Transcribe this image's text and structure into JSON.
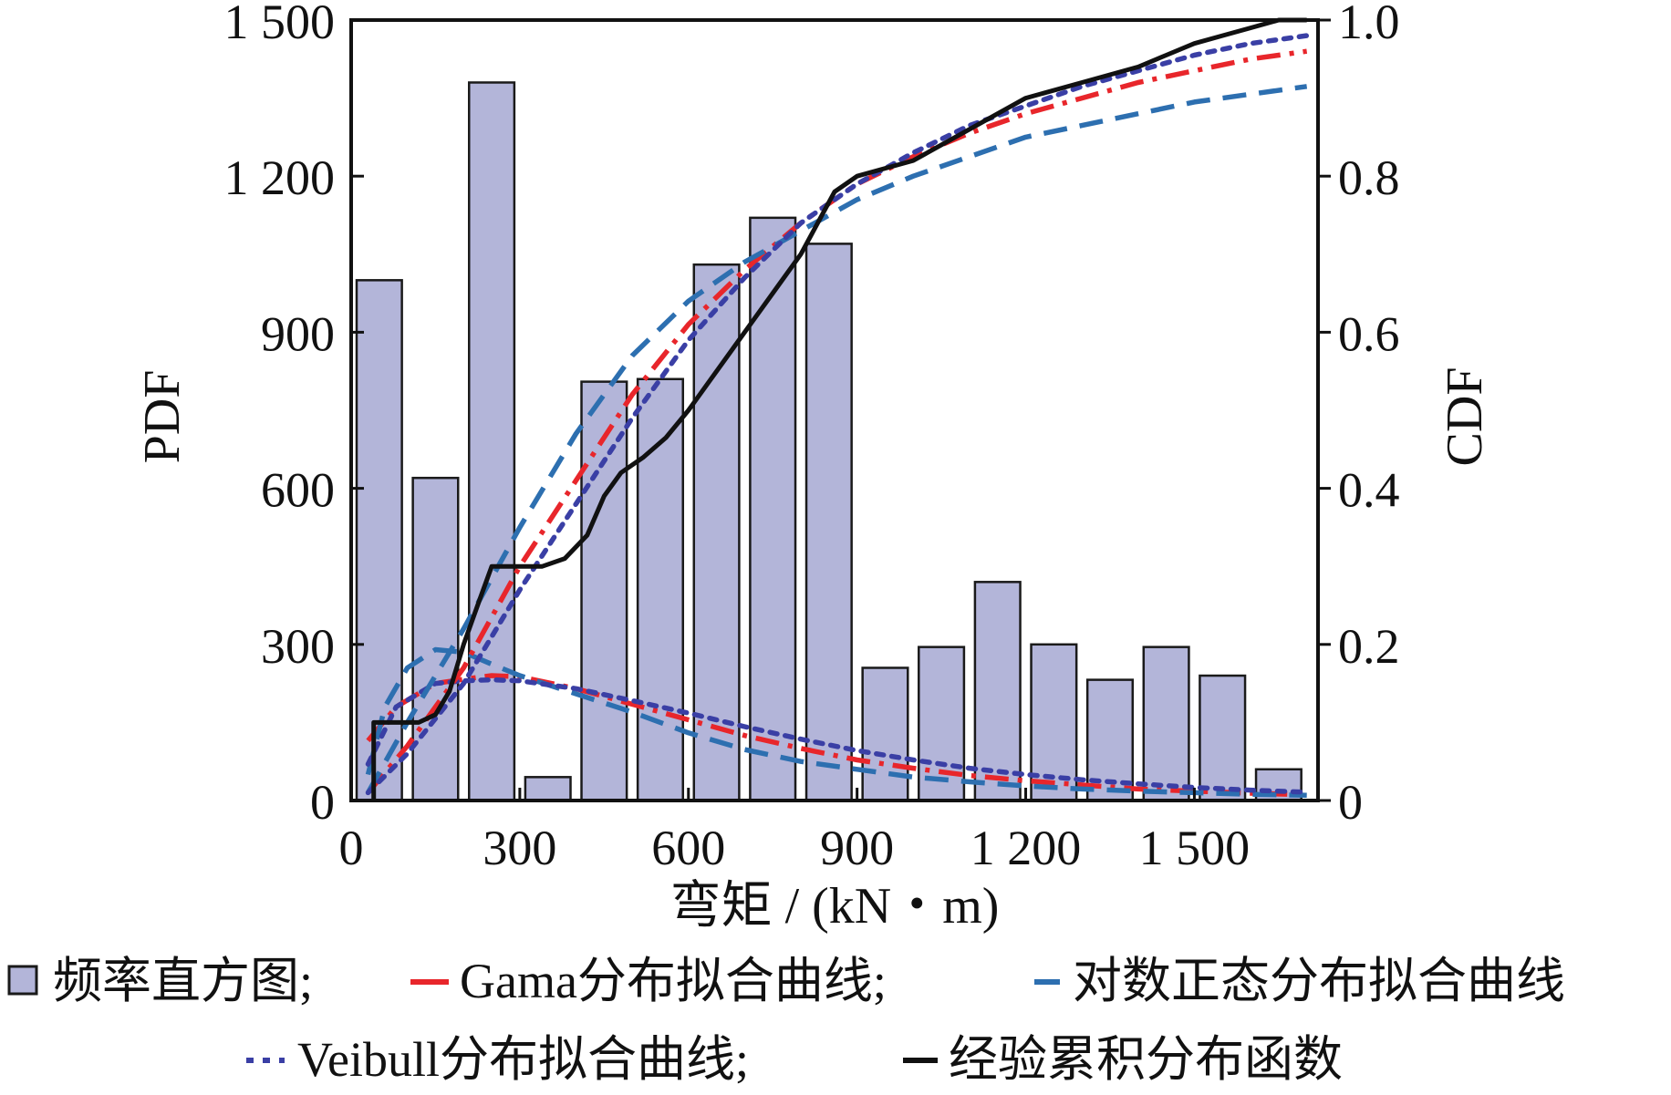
{
  "chart_data": {
    "type": "bar",
    "xlabel": "弯矩 / (kN・m)",
    "ylabel_left": "PDF",
    "ylabel_right": "CDF",
    "xlim": [
      0,
      1720
    ],
    "ylim_left": [
      0,
      1500
    ],
    "ylim_right": [
      0,
      1.0
    ],
    "x_ticks": [
      0,
      300,
      600,
      900,
      1200,
      1500
    ],
    "x_tick_labels": [
      "0",
      "300",
      "600",
      "900",
      "1 200",
      "1 500"
    ],
    "y_left_ticks": [
      0,
      300,
      600,
      900,
      1200,
      1500
    ],
    "y_left_tick_labels": [
      "0",
      "300",
      "600",
      "900",
      "1 200",
      "1 500"
    ],
    "y_right_ticks": [
      0,
      0.2,
      0.4,
      0.6,
      0.8,
      1.0
    ],
    "y_right_tick_labels": [
      "0",
      "0.2",
      "0.4",
      "0.6",
      "0.8",
      "1.0"
    ],
    "grid": false,
    "legend_position": "bottom",
    "colors": {
      "bar_fill": "#b3b5d9",
      "bar_stroke": "#1a1a1a",
      "gama": "#e8262b",
      "lognormal": "#2d6fb0",
      "weibull": "#3a3fa5",
      "ecdf": "#111111"
    },
    "histogram": {
      "name": "频率直方图",
      "bin_width": 100,
      "bin_start": [
        0,
        100,
        200,
        300,
        400,
        500,
        600,
        700,
        800,
        900,
        1000,
        1100,
        1200,
        1300,
        1400,
        1500,
        1600
      ],
      "values": [
        1000,
        620,
        1380,
        45,
        805,
        810,
        1030,
        1120,
        1070,
        255,
        295,
        420,
        300,
        232,
        295,
        240,
        60
      ]
    },
    "series": [
      {
        "name": "Gama分布拟合曲线",
        "axis": "left",
        "style": "dashdot",
        "color_key": "gama",
        "x": [
          30,
          80,
          150,
          200,
          250,
          300,
          400,
          500,
          600,
          700,
          800,
          900,
          1000,
          1100,
          1200,
          1300,
          1400,
          1500,
          1600,
          1700
        ],
        "y": [
          115,
          180,
          225,
          233,
          240,
          238,
          215,
          185,
          155,
          125,
          100,
          78,
          62,
          48,
          38,
          30,
          22,
          18,
          14,
          11
        ]
      },
      {
        "name": "对数正态分布拟合曲线",
        "axis": "left",
        "style": "dashed",
        "color_key": "lognormal",
        "x": [
          30,
          60,
          100,
          150,
          200,
          250,
          300,
          400,
          500,
          600,
          700,
          800,
          900,
          1000,
          1100,
          1200,
          1300,
          1400,
          1500,
          1600,
          1700
        ],
        "y": [
          50,
          180,
          255,
          290,
          285,
          262,
          240,
          205,
          170,
          130,
          98,
          75,
          60,
          45,
          36,
          28,
          22,
          18,
          15,
          12,
          10
        ]
      },
      {
        "name": "Veibull分布拟合曲线",
        "axis": "left",
        "style": "dotted",
        "color_key": "weibull",
        "x": [
          30,
          80,
          150,
          200,
          250,
          300,
          400,
          500,
          600,
          700,
          800,
          900,
          1000,
          1100,
          1200,
          1300,
          1400,
          1500,
          1600,
          1700
        ],
        "y": [
          70,
          180,
          225,
          230,
          232,
          230,
          215,
          192,
          168,
          142,
          118,
          96,
          78,
          62,
          50,
          40,
          32,
          25,
          20,
          16
        ]
      },
      {
        "name": "Gama分布拟合曲线",
        "axis": "right",
        "style": "dashdot",
        "color_key": "gama",
        "x": [
          30,
          100,
          200,
          300,
          400,
          500,
          600,
          700,
          800,
          900,
          1000,
          1100,
          1200,
          1300,
          1400,
          1500,
          1600,
          1700
        ],
        "y": [
          0.01,
          0.07,
          0.17,
          0.3,
          0.41,
          0.52,
          0.61,
          0.68,
          0.74,
          0.79,
          0.825,
          0.855,
          0.88,
          0.9,
          0.92,
          0.935,
          0.95,
          0.96
        ]
      },
      {
        "name": "对数正态分布拟合曲线",
        "axis": "right",
        "style": "dashed",
        "color_key": "lognormal",
        "x": [
          30,
          100,
          200,
          300,
          400,
          500,
          600,
          700,
          800,
          900,
          1000,
          1100,
          1200,
          1300,
          1400,
          1500,
          1600,
          1700
        ],
        "y": [
          0.01,
          0.1,
          0.22,
          0.35,
          0.47,
          0.57,
          0.64,
          0.69,
          0.73,
          0.77,
          0.8,
          0.825,
          0.85,
          0.865,
          0.88,
          0.895,
          0.905,
          0.915
        ]
      },
      {
        "name": "Veibull分布拟合曲线",
        "axis": "right",
        "style": "dotted",
        "color_key": "weibull",
        "x": [
          30,
          100,
          200,
          300,
          400,
          500,
          600,
          700,
          800,
          900,
          1000,
          1100,
          1200,
          1300,
          1400,
          1500,
          1600,
          1700
        ],
        "y": [
          0.01,
          0.06,
          0.15,
          0.27,
          0.38,
          0.49,
          0.59,
          0.67,
          0.74,
          0.79,
          0.83,
          0.865,
          0.89,
          0.915,
          0.935,
          0.955,
          0.97,
          0.98
        ]
      },
      {
        "name": "经验累积分布函数",
        "axis": "right",
        "style": "solid",
        "color_key": "ecdf",
        "x": [
          40,
          40,
          50,
          80,
          120,
          150,
          175,
          200,
          230,
          250,
          270,
          300,
          340,
          380,
          420,
          450,
          480,
          520,
          560,
          600,
          640,
          680,
          720,
          760,
          800,
          830,
          860,
          900,
          950,
          1000,
          1100,
          1200,
          1300,
          1400,
          1450,
          1500,
          1550,
          1600,
          1650,
          1700
        ],
        "y": [
          0.0,
          0.1,
          0.1,
          0.1,
          0.1,
          0.11,
          0.14,
          0.2,
          0.26,
          0.3,
          0.3,
          0.3,
          0.3,
          0.31,
          0.34,
          0.39,
          0.42,
          0.44,
          0.465,
          0.5,
          0.54,
          0.58,
          0.62,
          0.66,
          0.7,
          0.74,
          0.78,
          0.8,
          0.81,
          0.82,
          0.86,
          0.9,
          0.92,
          0.94,
          0.955,
          0.97,
          0.98,
          0.99,
          1.0,
          1.0
        ]
      }
    ]
  },
  "legend": {
    "row1": [
      {
        "label": "频率直方图;",
        "swatch": "box"
      },
      {
        "label": "Gama分布拟合曲线;",
        "swatch": "line",
        "color_key": "gama"
      },
      {
        "label": "对数正态分布拟合曲线",
        "swatch": "line",
        "color_key": "lognormal"
      }
    ],
    "row2": [
      {
        "label": "Veibull分布拟合曲线;",
        "swatch": "dotted",
        "color_key": "weibull"
      },
      {
        "label": "经验累积分布函数",
        "swatch": "line",
        "color_key": "ecdf"
      }
    ]
  }
}
